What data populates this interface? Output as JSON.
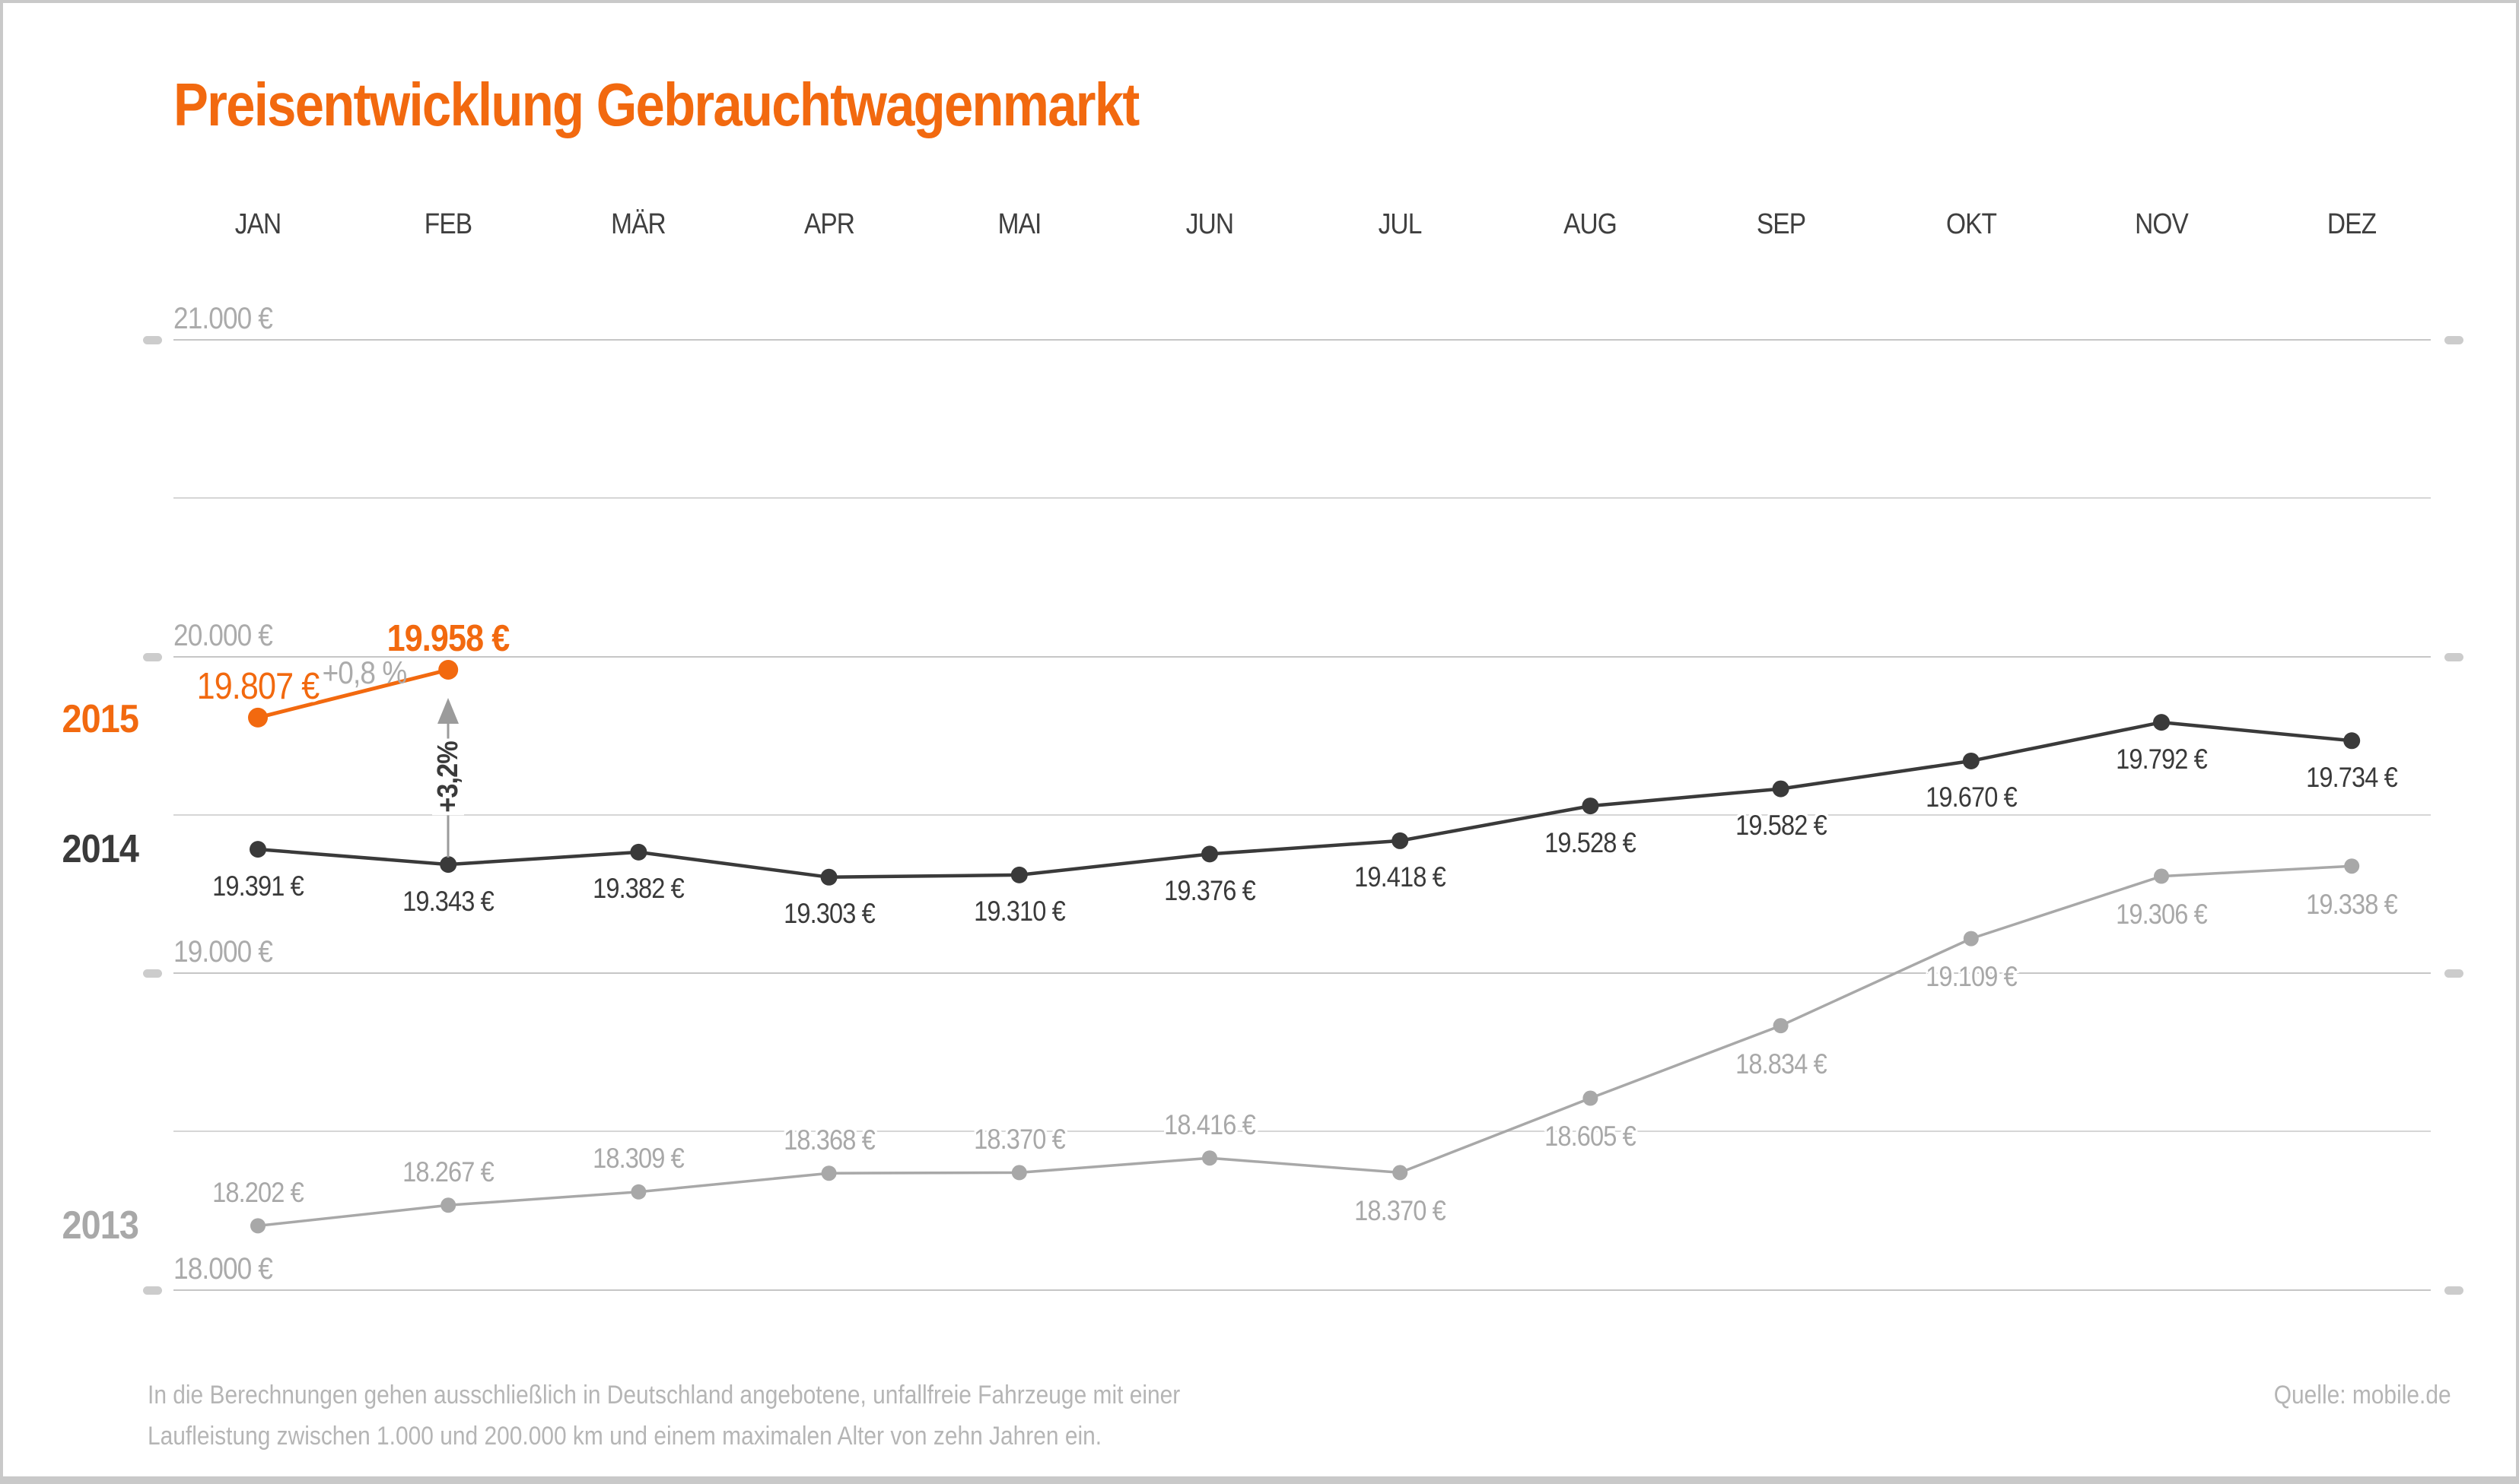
{
  "title": "Preisentwicklung Gebrauchtwagenmarkt",
  "source": "Quelle: mobile.de",
  "footer": {
    "line1": "In die Berechnungen gehen ausschließlich in Deutschland angebotene, unfallfreie Fahrzeuge mit einer",
    "line2": "Laufleistung zwischen 1.000 und 200.000 km und einem maximalen Alter von zehn Jahren ein."
  },
  "colors": {
    "accent": "#F2690F",
    "dark": "#3A3A3A",
    "gray_2013": "#A8A8A8",
    "axis_label": "#ABABAB",
    "month_label": "#3F3F3F",
    "grid_major": "#C6C6C6",
    "grid_minor": "#D6D6D6",
    "tick": "#CCCCCC",
    "arrow": "#9B9B9B",
    "footer_text": "#B5B5B5",
    "frame": "#C9C9C9"
  },
  "chart_data": {
    "type": "line",
    "title": "Preisentwicklung Gebrauchtwagenmarkt",
    "categories": [
      "JAN",
      "FEB",
      "MÄR",
      "APR",
      "MAI",
      "JUN",
      "JUL",
      "AUG",
      "SEP",
      "OKT",
      "NOV",
      "DEZ"
    ],
    "unit": "€",
    "ylim": [
      18000,
      21000
    ],
    "grid": "horizontal",
    "yticks": [
      {
        "value": 21000,
        "label": "21.000 €"
      },
      {
        "value": 20000,
        "label": "20.000 €"
      },
      {
        "value": 19000,
        "label": "19.000 €"
      },
      {
        "value": 18000,
        "label": "18.000 €"
      }
    ],
    "minor_gridlines": [
      20500,
      19500,
      18500
    ],
    "ytick_labels_shown_on": "both-sides",
    "series": [
      {
        "name": "2013",
        "color": "#A8A8A8",
        "values": [
          18202,
          18267,
          18309,
          18368,
          18370,
          18416,
          18370,
          18605,
          18834,
          19109,
          19306,
          19338
        ],
        "labels": [
          "18.202 €",
          "18.267 €",
          "18.309 €",
          "18.368 €",
          "18.370 €",
          "18.416 €",
          "18.370 €",
          "18.605 €",
          "18.834 €",
          "19.109 €",
          "19.306 €",
          "19.338 €"
        ]
      },
      {
        "name": "2014",
        "color": "#3A3A3A",
        "values": [
          19391,
          19343,
          19382,
          19303,
          19310,
          19376,
          19418,
          19528,
          19582,
          19670,
          19792,
          19734
        ],
        "labels": [
          "19.391 €",
          "19.343 €",
          "19.382 €",
          "19.303 €",
          "19.310 €",
          "19.376 €",
          "19.418 €",
          "19.528 €",
          "19.582 €",
          "19.670 €",
          "19.792 €",
          "19.734 €"
        ]
      },
      {
        "name": "2015",
        "color": "#F2690F",
        "values": [
          19807,
          19958
        ],
        "labels": [
          "19.807 €",
          "19.958 €"
        ]
      }
    ],
    "annotations": {
      "feb_monthly_change": "+0,8 %",
      "feb_yoy_change": "+3,2%"
    }
  }
}
